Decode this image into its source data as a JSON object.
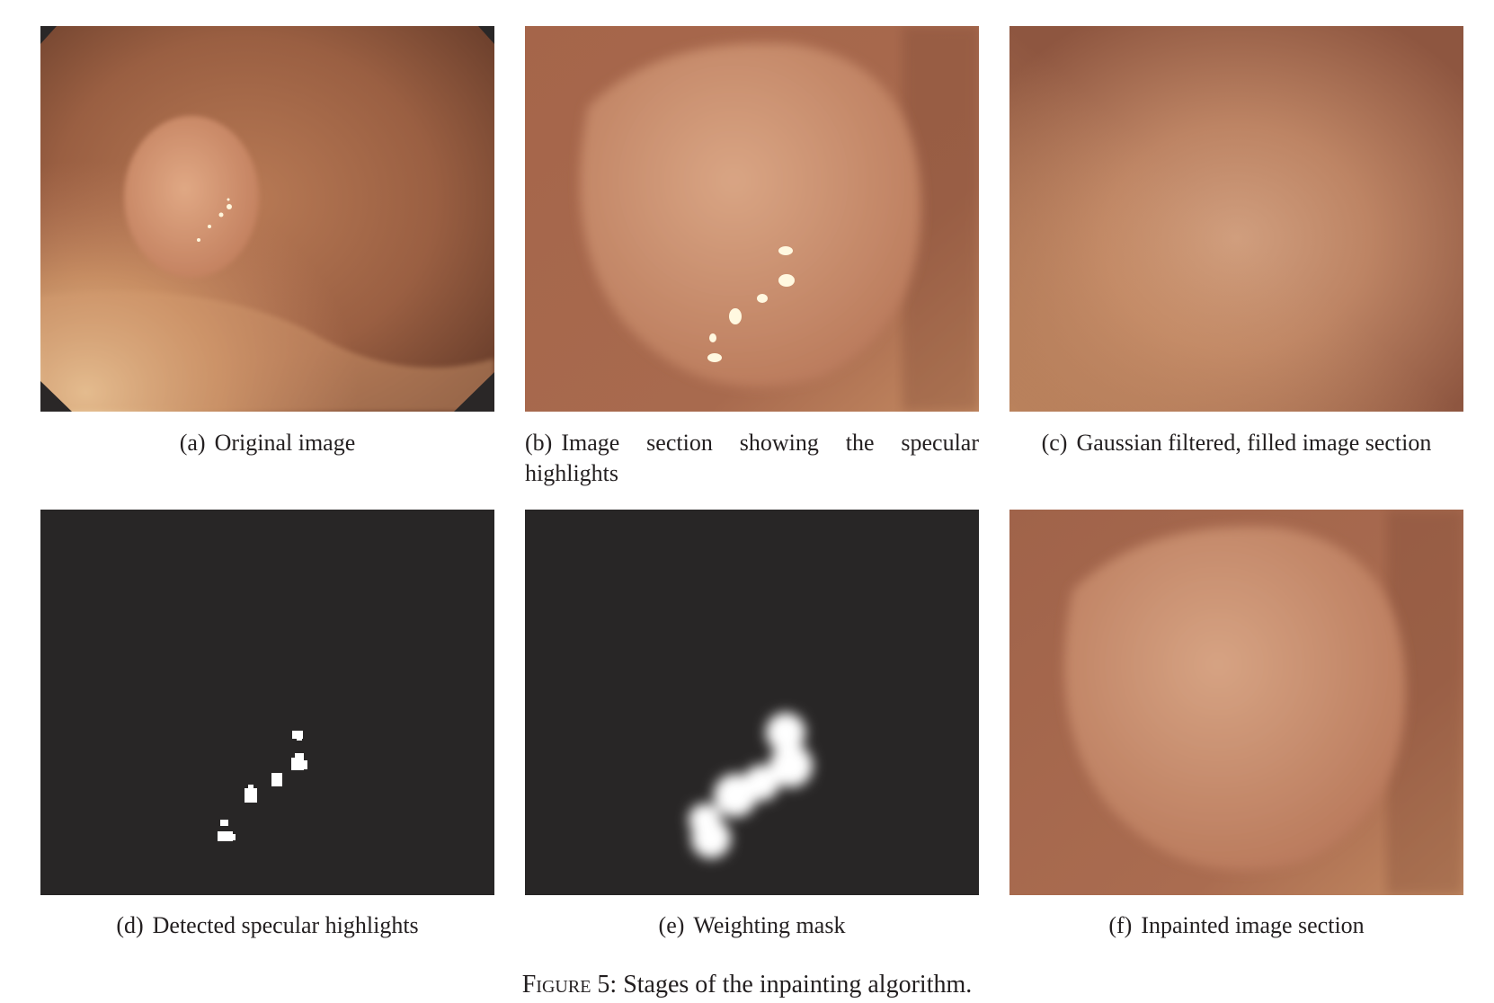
{
  "figure": {
    "label": "Figure 5",
    "caption_text": ": Stages of the inpainting algorithm."
  },
  "panels": [
    {
      "tag": "(a)",
      "caption": "Original image"
    },
    {
      "tag": "(b)",
      "caption": "Image section showing the specular highlights"
    },
    {
      "tag": "(c)",
      "caption": "Gaussian filtered, filled image section"
    },
    {
      "tag": "(d)",
      "caption": "Detected specular highlights"
    },
    {
      "tag": "(e)",
      "caption": "Weighting mask"
    },
    {
      "tag": "(f)",
      "caption": "Inpainted image section"
    }
  ],
  "colors": {
    "tissue_dark": "#6e3c2a",
    "tissue_mid": "#b8744f",
    "tissue_light": "#e0a877",
    "mask_background": "#282626",
    "mask_foreground": "#ffffff"
  }
}
